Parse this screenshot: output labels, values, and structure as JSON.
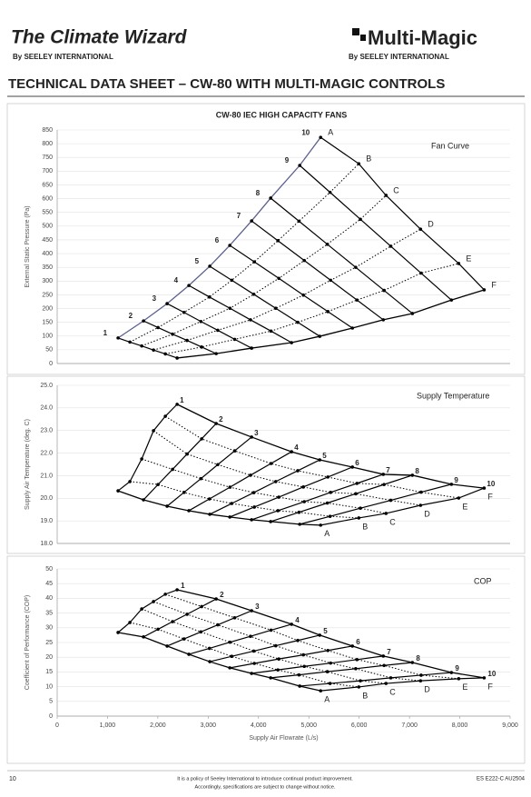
{
  "header": {
    "left_logo": "The Climate Wizard",
    "left_byline": "By SEELEY INTERNATIONAL",
    "right_logo": "Multi-Magic",
    "right_byline": "By SEELEY INTERNATIONAL"
  },
  "title": "TECHNICAL DATA SHEET – CW-80 WITH MULTI-MAGIC CONTROLS",
  "chart_data": [
    {
      "type": "line",
      "title": "CW-80 IEC HIGH CAPACITY FANS",
      "label": "Fan Curve",
      "y_label": "External Static Pressure (Pa)",
      "xlim": [
        0,
        9000
      ],
      "ylim": [
        0,
        850
      ],
      "yticks": [
        0,
        50,
        100,
        150,
        200,
        250,
        300,
        350,
        400,
        450,
        500,
        550,
        600,
        650,
        700,
        750,
        800,
        850
      ],
      "grid": true,
      "system_curves": [
        "A",
        "B",
        "C",
        "D",
        "E",
        "F"
      ],
      "system_curve_styles": [
        "solid",
        "dotted",
        "dotted",
        "dotted",
        "dotted",
        "solid"
      ],
      "system_curve_colors": [
        "#5b5f8f",
        "#000000",
        "#000000",
        "#000000",
        "#000000",
        "#000000"
      ],
      "series": [
        {
          "name": "1",
          "color": "#000000",
          "x": [
            1210,
            1445,
            1680,
            1914,
            2149,
            2383
          ],
          "values": [
            93,
            78,
            64,
            49,
            35,
            20
          ]
        },
        {
          "name": "2",
          "color": "#000000",
          "x": [
            1715,
            2004,
            2293,
            2581,
            2870,
            3159
          ],
          "values": [
            155,
            131,
            107,
            84,
            60,
            36
          ]
        },
        {
          "name": "3",
          "color": "#000000",
          "x": [
            2184,
            2520,
            2856,
            3191,
            3527,
            3863
          ],
          "values": [
            218,
            186,
            153,
            121,
            88,
            56
          ]
        },
        {
          "name": "4",
          "color": "#000000",
          "x": [
            2617,
            3025,
            3433,
            3841,
            4249,
            4657
          ],
          "values": [
            284,
            242,
            201,
            159,
            118,
            76
          ]
        },
        {
          "name": "5",
          "color": "#000000",
          "x": [
            3032,
            3469,
            3906,
            4343,
            4780,
            5217
          ],
          "values": [
            354,
            303,
            252,
            201,
            150,
            99
          ]
        },
        {
          "name": "6",
          "color": "#000000",
          "x": [
            3430,
            3917,
            4404,
            4892,
            5379,
            5866
          ],
          "values": [
            430,
            370,
            310,
            249,
            189,
            129
          ]
        },
        {
          "name": "7",
          "color": "#000000",
          "x": [
            3863,
            4386,
            4910,
            5433,
            5957,
            6480
          ],
          "values": [
            519,
            447,
            375,
            303,
            231,
            159
          ]
        },
        {
          "name": "8",
          "color": "#000000",
          "x": [
            4242,
            4805,
            5368,
            5932,
            6495,
            7058
          ],
          "values": [
            602,
            518,
            434,
            350,
            266,
            182
          ]
        },
        {
          "name": "9",
          "color": "#000000",
          "x": [
            4819,
            5422,
            6025,
            6628,
            7231,
            7834
          ],
          "values": [
            721,
            623,
            525,
            427,
            329,
            231
          ]
        },
        {
          "name": "10",
          "color": "#000000",
          "x": [
            5235,
            5993,
            6534,
            7220,
            7978,
            8484
          ],
          "values": [
            823,
            727,
            612,
            489,
            364,
            268
          ]
        }
      ]
    },
    {
      "type": "line",
      "label": "Supply Temperature",
      "y_label": "Supply Air Temperature (deg. C)",
      "xlim": [
        0,
        9000
      ],
      "ylim": [
        18,
        25
      ],
      "yticks": [
        {
          "value": 18,
          "label": "18.0"
        },
        {
          "value": 19,
          "label": "19.0"
        },
        {
          "value": 20,
          "label": "20.0"
        },
        {
          "value": 21,
          "label": "21.0"
        },
        {
          "value": 22,
          "label": "22.0"
        },
        {
          "value": 23,
          "label": "23.0"
        },
        {
          "value": 24,
          "label": "24.0"
        },
        {
          "value": 25,
          "label": "25.0"
        }
      ],
      "grid": true,
      "system_curves": [
        "A",
        "B",
        "C",
        "D",
        "E",
        "F"
      ],
      "system_curve_styles": [
        "solid",
        "dotted",
        "dotted",
        "dotted",
        "dotted",
        "solid"
      ],
      "system_curve_colors": [
        "#000000",
        "#000000",
        "#000000",
        "#000000",
        "#000000",
        "#000000"
      ],
      "series": [
        {
          "name": "1",
          "color": "#000000",
          "x": [
            1210,
            1445,
            1680,
            1914,
            2149,
            2383
          ],
          "values": [
            20.33,
            20.74,
            21.74,
            22.99,
            23.63,
            24.16
          ]
        },
        {
          "name": "2",
          "color": "#000000",
          "x": [
            1715,
            2004,
            2293,
            2581,
            2870,
            3159
          ],
          "values": [
            19.93,
            20.61,
            21.28,
            21.96,
            22.63,
            23.31
          ]
        },
        {
          "name": "3",
          "color": "#000000",
          "x": [
            2184,
            2520,
            2856,
            3191,
            3527,
            3863
          ],
          "values": [
            19.65,
            20.26,
            20.87,
            21.49,
            22.1,
            22.71
          ]
        },
        {
          "name": "4",
          "color": "#000000",
          "x": [
            2617,
            3025,
            3433,
            3841,
            4249,
            4657
          ],
          "values": [
            19.45,
            19.97,
            20.49,
            21.02,
            21.54,
            22.06
          ]
        },
        {
          "name": "5",
          "color": "#000000",
          "x": [
            3032,
            3469,
            3906,
            4343,
            4780,
            5217
          ],
          "values": [
            19.29,
            19.77,
            20.25,
            20.74,
            21.22,
            21.7
          ]
        },
        {
          "name": "6",
          "color": "#000000",
          "x": [
            3430,
            3917,
            4404,
            4892,
            5379,
            5866
          ],
          "values": [
            19.17,
            19.61,
            20.05,
            20.5,
            20.94,
            21.38
          ]
        },
        {
          "name": "7",
          "color": "#000000",
          "x": [
            3863,
            4386,
            4910,
            5433,
            5957,
            6480
          ],
          "values": [
            19.05,
            19.45,
            19.85,
            20.26,
            20.66,
            21.06
          ]
        },
        {
          "name": "8",
          "color": "#000000",
          "x": [
            4242,
            4805,
            5368,
            5932,
            6495,
            7058
          ],
          "values": [
            18.97,
            19.38,
            19.79,
            20.2,
            20.61,
            21.02
          ]
        },
        {
          "name": "9",
          "color": "#000000",
          "x": [
            4819,
            5422,
            6025,
            6628,
            7231,
            7834
          ],
          "values": [
            18.85,
            19.2,
            19.56,
            19.91,
            20.27,
            20.62
          ]
        },
        {
          "name": "10",
          "color": "#000000",
          "x": [
            5235,
            5993,
            6534,
            7220,
            7978,
            8484
          ],
          "values": [
            18.81,
            19.13,
            19.33,
            19.69,
            20.01,
            20.45
          ]
        }
      ]
    },
    {
      "type": "line",
      "label": "COP",
      "y_label": "Coefficient of Performance (COP)",
      "x_label": "Supply Air Flowrate (L/s)",
      "xlim": [
        0,
        9000
      ],
      "xticks": [
        0,
        {
          "value": 1000,
          "label": "1,000"
        },
        {
          "value": 2000,
          "label": "2,000"
        },
        {
          "value": 3000,
          "label": "3,000"
        },
        {
          "value": 4000,
          "label": "4,000"
        },
        {
          "value": 5000,
          "label": "5,000"
        },
        {
          "value": 6000,
          "label": "6,000"
        },
        {
          "value": 7000,
          "label": "7,000"
        },
        {
          "value": 8000,
          "label": "8,000"
        },
        {
          "value": 9000,
          "label": "9,000"
        }
      ],
      "ylim": [
        0,
        50
      ],
      "yticks": [
        0,
        5,
        10,
        15,
        20,
        25,
        30,
        35,
        40,
        45,
        50
      ],
      "grid": true,
      "system_curves": [
        "A",
        "B",
        "C",
        "D",
        "E",
        "F"
      ],
      "system_curve_styles": [
        "solid",
        "dotted",
        "dotted",
        "dotted",
        "dotted",
        "solid"
      ],
      "system_curve_colors": [
        "#000000",
        "#000000",
        "#000000",
        "#000000",
        "#000000",
        "#000000"
      ],
      "series": [
        {
          "name": "1",
          "color": "#000000",
          "x": [
            1210,
            1445,
            1680,
            1914,
            2149,
            2383
          ],
          "values": [
            28.4,
            31.8,
            36.4,
            38.9,
            41.4,
            42.9
          ]
        },
        {
          "name": "2",
          "color": "#000000",
          "x": [
            1715,
            2004,
            2293,
            2581,
            2870,
            3159
          ],
          "values": [
            26.9,
            29.5,
            32.1,
            34.6,
            37.2,
            39.8
          ]
        },
        {
          "name": "3",
          "color": "#000000",
          "x": [
            2184,
            2520,
            2856,
            3191,
            3527,
            3863
          ],
          "values": [
            23.8,
            26.2,
            28.6,
            31,
            33.4,
            35.8
          ]
        },
        {
          "name": "4",
          "color": "#000000",
          "x": [
            2617,
            3025,
            3433,
            3841,
            4249,
            4657
          ],
          "values": [
            21,
            23,
            25.1,
            27.1,
            29.2,
            31.2
          ]
        },
        {
          "name": "5",
          "color": "#000000",
          "x": [
            3032,
            3469,
            3906,
            4343,
            4780,
            5217
          ],
          "values": [
            18.5,
            20.3,
            22.1,
            23.9,
            25.7,
            27.5
          ]
        },
        {
          "name": "6",
          "color": "#000000",
          "x": [
            3430,
            3917,
            4404,
            4892,
            5379,
            5866
          ],
          "values": [
            16.4,
            17.9,
            19.4,
            20.8,
            22.3,
            23.8
          ]
        },
        {
          "name": "7",
          "color": "#000000",
          "x": [
            3863,
            4386,
            4910,
            5433,
            5957,
            6480
          ],
          "values": [
            14.5,
            15.7,
            16.9,
            18,
            19.2,
            20.4
          ]
        },
        {
          "name": "8",
          "color": "#000000",
          "x": [
            4242,
            4805,
            5368,
            5932,
            6495,
            7058
          ],
          "values": [
            13,
            14,
            15.1,
            16.1,
            17.2,
            18.2
          ]
        },
        {
          "name": "9",
          "color": "#000000",
          "x": [
            4819,
            5422,
            6025,
            6628,
            7231,
            7834
          ],
          "values": [
            10.2,
            11.1,
            12,
            13,
            13.9,
            14.8
          ]
        },
        {
          "name": "10",
          "color": "#000000",
          "x": [
            5235,
            5993,
            6534,
            7220,
            7978,
            8484
          ],
          "values": [
            8.6,
            9.9,
            11.1,
            12,
            12.7,
            13
          ]
        }
      ]
    }
  ],
  "footer": {
    "page": "10",
    "notes": [
      "It is a policy of Seeley International to introduce continual product improvement.",
      "Accordingly, specifications are subject to change without notice."
    ],
    "code": "ES E222-C  AU2504"
  }
}
